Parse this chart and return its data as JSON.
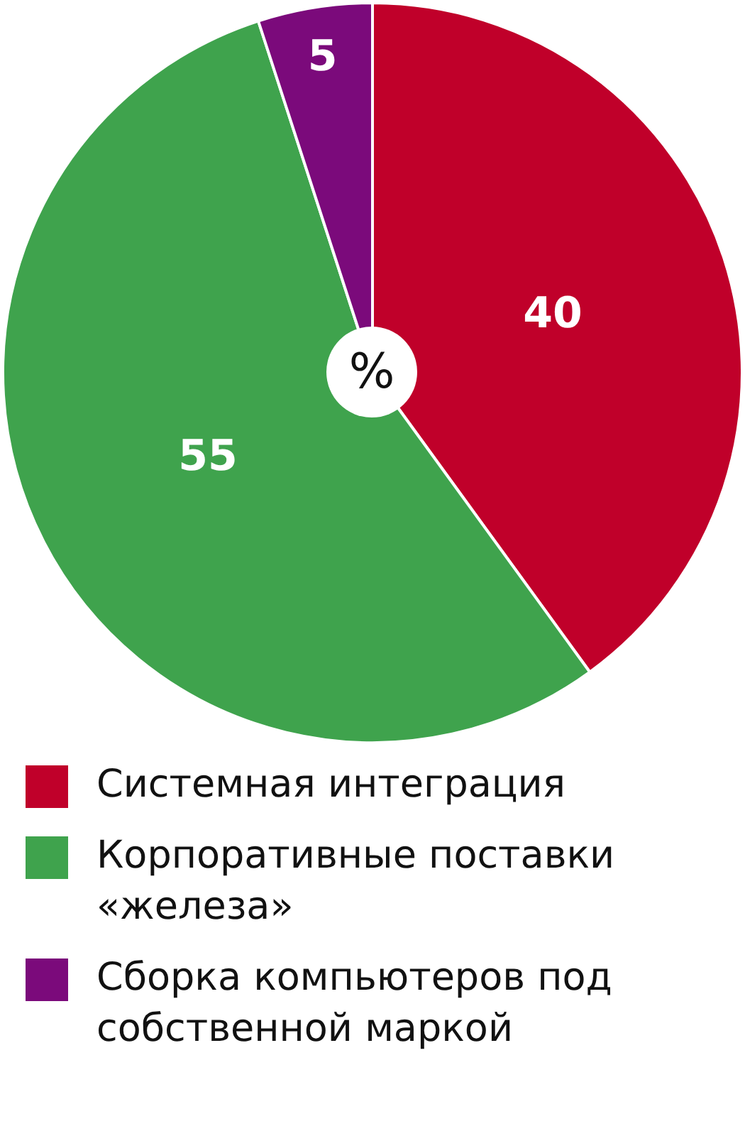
{
  "chart_data": {
    "type": "pie",
    "categories": [
      "Системная интеграция",
      "Корпоративные поставки «железа»",
      "Сборка компьютеров под собственной маркой"
    ],
    "values": [
      40,
      55,
      5
    ],
    "colors": [
      "#c0002a",
      "#3fa34d",
      "#7b0a7b"
    ],
    "data_labels": true,
    "annotations": [
      "%"
    ],
    "legend": "bottom"
  }
}
